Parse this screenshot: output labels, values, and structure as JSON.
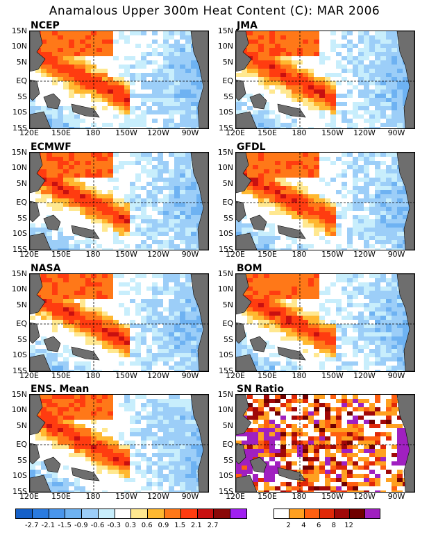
{
  "title": "Anamalous Upper 300m Heat Content (C): MAR 2006",
  "panels": [
    {
      "label": "NCEP"
    },
    {
      "label": "JMA"
    },
    {
      "label": "ECMWF"
    },
    {
      "label": "GFDL"
    },
    {
      "label": "NASA"
    },
    {
      "label": "BOM"
    },
    {
      "label": "ENS. Mean"
    },
    {
      "label": "SN Ratio"
    }
  ],
  "lat_ticks": [
    "15N",
    "10N",
    "5N",
    "EQ",
    "5S",
    "10S",
    "15S"
  ],
  "lon_ticks": [
    "120E",
    "150E",
    "180",
    "150W",
    "120W",
    "90W"
  ],
  "colorbar_anomaly": {
    "labels": [
      "-2.7",
      "-2.1",
      "-1.5",
      "-0.9",
      "-0.6",
      "-0.3",
      "0.3",
      "0.6",
      "0.9",
      "1.5",
      "2.1",
      "2.7"
    ],
    "colors": [
      "#1560c8",
      "#2a7be0",
      "#4a96ec",
      "#6eb2f2",
      "#9ccef8",
      "#c8eefc",
      "#ffffff",
      "#ffe890",
      "#ffb830",
      "#ff7818",
      "#ff3c10",
      "#c81010",
      "#8a0808",
      "#a020f0"
    ]
  },
  "colorbar_sn": {
    "labels": [
      "2",
      "4",
      "6",
      "8",
      "12"
    ],
    "colors": [
      "#ffffff",
      "#ffa020",
      "#ff6010",
      "#e02808",
      "#a00808",
      "#700000",
      "#a020c0"
    ]
  },
  "colors": {
    "land": "#6e6e6e"
  }
}
